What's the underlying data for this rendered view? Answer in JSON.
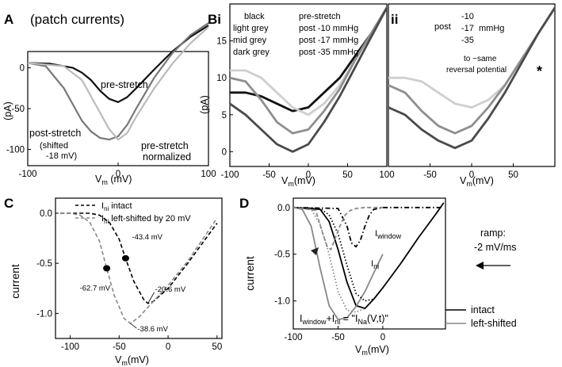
{
  "chart_data": [
    {
      "panel": "A",
      "type": "line",
      "title": "(patch currents)",
      "xlabel": "Vm (mV)",
      "ylabel": "(pA)",
      "xlim": [
        -100,
        100
      ],
      "ylim": [
        -120,
        20
      ],
      "xticks": [
        -100,
        0,
        100
      ],
      "yticks": [
        0,
        -50,
        -100
      ],
      "series": [
        {
          "name": "pre-stretch",
          "color": "#111111",
          "x": [
            -100,
            -75,
            -50,
            -40,
            -30,
            -20,
            -10,
            0,
            10,
            20,
            40,
            60,
            80,
            100
          ],
          "y": [
            6,
            5,
            0,
            -6,
            -15,
            -28,
            -38,
            -42,
            -36,
            -25,
            -2,
            20,
            38,
            52
          ]
        },
        {
          "name": "post-stretch (shifted -18 mV)",
          "color": "#777777",
          "x": [
            -100,
            -80,
            -60,
            -50,
            -40,
            -30,
            -20,
            -10,
            0,
            10,
            20,
            40,
            60,
            80,
            100
          ],
          "y": [
            6,
            2,
            -25,
            -45,
            -65,
            -78,
            -86,
            -88,
            -84,
            -70,
            -50,
            -12,
            18,
            40,
            55
          ]
        },
        {
          "name": "pre-stretch normalized",
          "color": "#bbbbbb",
          "x": [
            -100,
            -60,
            -40,
            -30,
            -20,
            -10,
            0,
            10,
            20,
            40,
            60,
            80,
            100
          ],
          "y": [
            6,
            2,
            -15,
            -35,
            -55,
            -75,
            -88,
            -80,
            -60,
            -25,
            5,
            30,
            50
          ]
        }
      ],
      "annotations": [
        "pre-stretch",
        "post-stretch",
        "(shifted",
        "-18 mV)",
        "pre-stretch",
        "normalized"
      ]
    },
    {
      "panel": "Bi",
      "type": "line",
      "xlabel": "Vm (mV)",
      "ylabel": "(pA)",
      "xlim": [
        -100,
        100
      ],
      "ylim": [
        -2,
        20
      ],
      "xticks": [
        -100,
        -50,
        0,
        50,
        100
      ],
      "yticks": [
        0,
        5,
        10,
        15
      ],
      "legend": [
        {
          "color_name": "black",
          "desc": "pre-stretch"
        },
        {
          "color_name": "light grey",
          "desc": "post -10 mmHg"
        },
        {
          "color_name": "mid grey",
          "desc": "post -17 mmHg"
        },
        {
          "color_name": "dark grey",
          "desc": "post -35 mmHg"
        }
      ],
      "series": [
        {
          "name": "pre-stretch",
          "color": "#111111",
          "x": [
            -100,
            -80,
            -60,
            -40,
            -20,
            0,
            20,
            40,
            60,
            80,
            100
          ],
          "y": [
            8,
            8,
            7.5,
            6.5,
            5.5,
            6,
            8,
            10,
            13,
            16,
            19.5
          ]
        },
        {
          "name": "post -10 mmHg",
          "color": "#cfcfcf",
          "x": [
            -100,
            -80,
            -60,
            -40,
            -20,
            0,
            20,
            40,
            60,
            80,
            100
          ],
          "y": [
            11,
            11,
            10,
            8,
            6,
            5,
            6.5,
            9,
            12.5,
            16,
            19.5
          ]
        },
        {
          "name": "post -17 mmHg",
          "color": "#8e8e8e",
          "x": [
            -100,
            -80,
            -60,
            -40,
            -20,
            0,
            20,
            40,
            60,
            80,
            100
          ],
          "y": [
            10,
            9.5,
            7,
            4,
            2.5,
            3,
            5.5,
            8.5,
            12.5,
            16,
            19.5
          ]
        },
        {
          "name": "post -35 mmHg",
          "color": "#4a4a4a",
          "x": [
            -100,
            -80,
            -60,
            -40,
            -20,
            0,
            20,
            40,
            60,
            80,
            100
          ],
          "y": [
            6.5,
            5,
            3,
            1,
            0,
            1,
            4,
            7.5,
            11.5,
            15.5,
            19.5
          ]
        }
      ]
    },
    {
      "panel": "ii",
      "type": "line",
      "xlabel": "Vm (mV)",
      "xlim": [
        -100,
        100
      ],
      "xticks": [
        -50,
        0,
        50
      ],
      "legend_text": {
        "prefix": "post",
        "values": [
          "-10",
          "-17",
          "-35"
        ],
        "unit": "mmHg"
      },
      "annotation": [
        "to ~same",
        "reversal potential"
      ],
      "marker": "*",
      "series": [
        {
          "name": "-10",
          "color": "#cfcfcf",
          "x": [
            -100,
            -80,
            -60,
            -40,
            -20,
            0,
            20,
            40,
            60,
            80,
            100
          ],
          "y": [
            10,
            10,
            9.5,
            8,
            6.5,
            6,
            7,
            9,
            12.5,
            16,
            19.5
          ]
        },
        {
          "name": "-17",
          "color": "#8e8e8e",
          "x": [
            -100,
            -80,
            -60,
            -40,
            -20,
            0,
            20,
            40,
            60,
            80,
            100
          ],
          "y": [
            9,
            8,
            5.5,
            3.5,
            2.5,
            3.5,
            6,
            9,
            12.5,
            16,
            19.5
          ]
        },
        {
          "name": "-35",
          "color": "#4a4a4a",
          "x": [
            -100,
            -80,
            -60,
            -40,
            -20,
            0,
            20,
            40,
            60,
            80,
            100
          ],
          "y": [
            6,
            5,
            3,
            1.5,
            0.5,
            1.5,
            4.5,
            8,
            12,
            16,
            19.5
          ]
        }
      ]
    },
    {
      "panel": "C",
      "type": "line",
      "xlabel": "Vm (mV)",
      "ylabel": "current",
      "xlim": [
        -115,
        55
      ],
      "ylim": [
        -1.25,
        0.15
      ],
      "xticks": [
        -100,
        -50,
        0,
        50
      ],
      "yticks": [
        0.0,
        -0.5,
        -1.0
      ],
      "ytick_labels": [
        "0.0",
        "-0.5",
        "-1.0"
      ],
      "legend": [
        "I_ni intact",
        "I_ni left-shifted by 20 mV"
      ],
      "legend_text": {
        "intact": "intact",
        "shifted": "left-shifted by 20 mV",
        "sym": "I",
        "sub": "ni"
      },
      "series": [
        {
          "name": "I_ni intact",
          "style": "dashed",
          "color": "#000000",
          "x": [
            -110,
            -80,
            -70,
            -60,
            -50,
            -43.4,
            -35,
            -25,
            -20.6,
            -15,
            0,
            20,
            50
          ],
          "y": [
            0,
            0,
            -0.02,
            -0.09,
            -0.26,
            -0.45,
            -0.68,
            -0.86,
            -0.9,
            -0.88,
            -0.75,
            -0.5,
            -0.1
          ]
        },
        {
          "name": "I_ni left-shifted by 20 mV",
          "style": "dashed",
          "color": "#888888",
          "x": [
            -110,
            -100,
            -90,
            -80,
            -70,
            -62.7,
            -55,
            -45,
            -38.6,
            -30,
            -15,
            0,
            20,
            50
          ],
          "y": [
            0,
            0,
            -0.02,
            -0.09,
            -0.28,
            -0.55,
            -0.82,
            -1.05,
            -1.1,
            -1.04,
            -0.88,
            -0.72,
            -0.48,
            -0.05
          ]
        }
      ],
      "points": [
        {
          "x": -62.7,
          "y": -0.55,
          "label": "-62.7 mV"
        },
        {
          "x": -43.4,
          "y": -0.45,
          "label": "-43.4 mV"
        }
      ],
      "annotations": [
        {
          "x": -20.6,
          "y": -0.9,
          "label": "-20.6 mV"
        },
        {
          "x": -38.6,
          "y": -1.1,
          "label": "-38.6 mV"
        }
      ]
    },
    {
      "panel": "D",
      "type": "line",
      "xlabel": "Vm (mV)",
      "ylabel": "current",
      "xlim": [
        -100,
        70
      ],
      "ylim": [
        -1.3,
        0.1
      ],
      "xticks": [
        -100,
        -50,
        0
      ],
      "yticks": [
        0.0,
        -0.5,
        -1.0
      ],
      "ytick_labels": [
        "0.0",
        "-0.5",
        "-1.0"
      ],
      "legend": [
        {
          "name": "intact",
          "color": "#000000"
        },
        {
          "name": "left-shifted",
          "color": "#888888"
        }
      ],
      "ramp_text": [
        "ramp:",
        "-2 mV/ms"
      ],
      "formula": {
        "l1": "I",
        "l1sub": "window",
        "plus": "+I",
        "l2sub": "ni",
        "eq": " = ",
        "l3": "\"I",
        "l3sub": "Na",
        "l3end": "(V,t)\""
      },
      "labels": {
        "window": "window",
        "ni": "ni"
      },
      "series": [
        {
          "name": "intact",
          "color": "#000000",
          "x": [
            -100,
            -70,
            -60,
            -50,
            -40,
            -30,
            -20,
            -10,
            0,
            20,
            40,
            60,
            68
          ],
          "y": [
            0,
            -0.02,
            -0.15,
            -0.45,
            -0.8,
            -1.05,
            -1.08,
            -0.98,
            -0.86,
            -0.6,
            -0.32,
            -0.06,
            0.05
          ]
        },
        {
          "name": "left-shifted",
          "color": "#888888",
          "x": [
            -100,
            -90,
            -80,
            -70,
            -60,
            -50,
            -40,
            -30,
            -20,
            -10,
            0
          ],
          "y": [
            0,
            -0.02,
            -0.2,
            -0.65,
            -1.05,
            -1.2,
            -1.18,
            -1.06,
            -0.9,
            -0.7,
            -0.5
          ]
        },
        {
          "name": "I_ni intact",
          "style": "dotted",
          "color": "#000000",
          "x": [
            -100,
            -70,
            -60,
            -50,
            -40,
            -30,
            -20,
            -10,
            0
          ],
          "y": [
            0,
            -0.01,
            -0.08,
            -0.28,
            -0.62,
            -0.92,
            -1.0,
            -0.98,
            -0.86
          ]
        },
        {
          "name": "I_ni left-shifted",
          "style": "dotted",
          "color": "#888888",
          "x": [
            -100,
            -80,
            -70,
            -60,
            -50,
            -40,
            -30,
            -20
          ],
          "y": [
            0,
            -0.02,
            -0.18,
            -0.5,
            -0.9,
            -1.1,
            -1.12,
            -1.08
          ]
        },
        {
          "name": "I_window intact",
          "style": "dashdot",
          "color": "#000000",
          "x": [
            -100,
            -50,
            -40,
            -35,
            -30,
            -25,
            -20,
            -15,
            -10,
            0,
            20,
            40,
            68
          ],
          "y": [
            0,
            -0.01,
            -0.2,
            -0.38,
            -0.42,
            -0.35,
            -0.2,
            -0.08,
            -0.02,
            0,
            0,
            0,
            0
          ]
        },
        {
          "name": "I_window left-shifted",
          "style": "dashed",
          "color": "#888888",
          "x": [
            -100,
            -75,
            -68,
            -62,
            -58,
            -54,
            -48,
            -42,
            -36,
            -30,
            -20,
            0
          ],
          "y": [
            0,
            -0.03,
            -0.25,
            -0.42,
            -0.45,
            -0.35,
            -0.2,
            -0.08,
            -0.03,
            -0.01,
            0,
            0
          ]
        }
      ]
    }
  ]
}
